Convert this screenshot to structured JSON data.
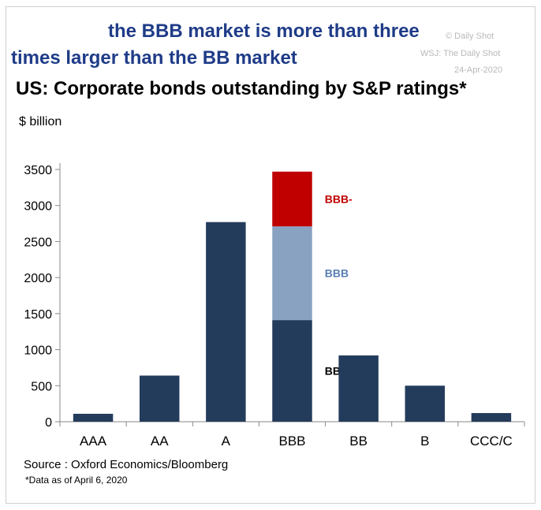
{
  "headline": {
    "line1": "the BBB market is more than three",
    "line2": "times larger than the BB market"
  },
  "watermark": {
    "source": "WSJ: The Daily Shot",
    "date": "24-Apr-2020",
    "faint": "© Daily Shot"
  },
  "chart_data": {
    "type": "bar",
    "title": "US: Corporate bonds outstanding by S&P ratings*",
    "ylabel": "$ billion",
    "xlabel": "",
    "ylim": [
      0,
      3500
    ],
    "yticks": [
      0,
      500,
      1000,
      1500,
      2000,
      2500,
      3000,
      3500
    ],
    "categories": [
      "AAA",
      "AA",
      "A",
      "BBB",
      "BB",
      "B",
      "CCC/C"
    ],
    "values": [
      110,
      640,
      2770,
      3470,
      920,
      500,
      120
    ],
    "bbb_breakdown": [
      {
        "name": "BBB+",
        "value": 1410,
        "color": "#243c5c",
        "label_color": "#000000"
      },
      {
        "name": "BBB",
        "value": 1300,
        "color": "#8aa2c2",
        "label_color": "#5a7fb5"
      },
      {
        "name": "BBB-",
        "value": 760,
        "color": "#c00000",
        "label_color": "#c00000"
      }
    ],
    "bar_color": "#243c5c",
    "grid": false
  },
  "source": "Source : Oxford Economics/Bloomberg",
  "note": "*Data as of April 6, 2020"
}
